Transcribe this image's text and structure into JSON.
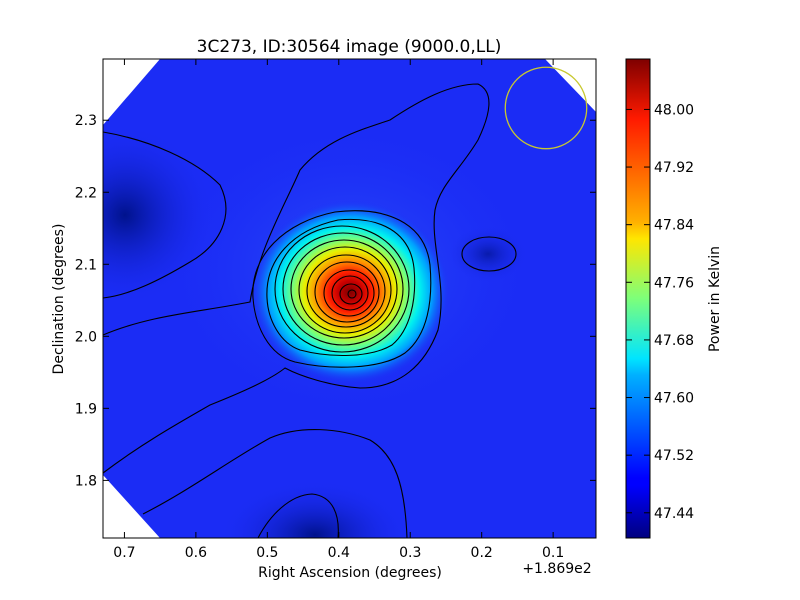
{
  "chart_data": {
    "type": "heatmap",
    "title": "3C273, ID:30564 image (9000.0,LL)",
    "xlabel": "Right Ascension (degrees)",
    "ylabel": "Declination (degrees)",
    "x_offset_text": "+1.869e2",
    "xlim": [
      0.73,
      0.04
    ],
    "ylim": [
      1.72,
      2.385
    ],
    "x_ticks": [
      {
        "value": 0.7,
        "label": "0.7"
      },
      {
        "value": 0.6,
        "label": "0.6"
      },
      {
        "value": 0.5,
        "label": "0.5"
      },
      {
        "value": 0.4,
        "label": "0.4"
      },
      {
        "value": 0.3,
        "label": "0.3"
      },
      {
        "value": 0.2,
        "label": "0.2"
      },
      {
        "value": 0.1,
        "label": "0.1"
      }
    ],
    "y_ticks": [
      {
        "value": 1.8,
        "label": "1.8"
      },
      {
        "value": 1.9,
        "label": "1.9"
      },
      {
        "value": 2.0,
        "label": "2.0"
      },
      {
        "value": 2.1,
        "label": "2.1"
      },
      {
        "value": 2.2,
        "label": "2.2"
      },
      {
        "value": 2.3,
        "label": "2.3"
      }
    ],
    "colorbar": {
      "label": "Power in Kelvin",
      "colormap": "jet",
      "range": [
        47.405,
        48.07
      ],
      "ticks": [
        {
          "value": 48.0,
          "label": "48.00"
        },
        {
          "value": 47.92,
          "label": "47.92"
        },
        {
          "value": 47.84,
          "label": "47.84"
        },
        {
          "value": 47.76,
          "label": "47.76"
        },
        {
          "value": 47.68,
          "label": "47.68"
        },
        {
          "value": 47.6,
          "label": "47.60"
        },
        {
          "value": 47.52,
          "label": "47.52"
        },
        {
          "value": 47.44,
          "label": "47.44"
        }
      ]
    },
    "peak": {
      "ra": 0.38,
      "dec": 2.06,
      "value": 48.07
    },
    "beam": {
      "ra": 0.11,
      "dec": 2.317,
      "radius_deg": 0.057,
      "color": "#c8c830"
    },
    "colors": {
      "background_field": "#1b2cf5",
      "contour_line": "#000000"
    }
  }
}
